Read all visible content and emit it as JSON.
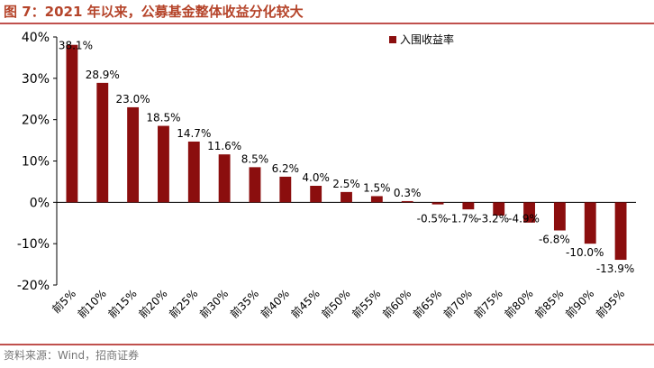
{
  "title": "图 7：2021 年以来，公募基金整体收益分化较大",
  "source": "资料来源：Wind，招商证券",
  "colors": {
    "bar": "#8b0e0e",
    "accent": "#c0504d",
    "title": "#b5442a"
  },
  "chart_data": {
    "type": "bar",
    "categories": [
      "前5%",
      "前10%",
      "前15%",
      "前20%",
      "前25%",
      "前30%",
      "前35%",
      "前40%",
      "前45%",
      "前50%",
      "前55%",
      "前60%",
      "前65%",
      "前70%",
      "前75%",
      "前80%",
      "前85%",
      "前90%",
      "前95%"
    ],
    "series": [
      {
        "name": "入围收益率",
        "values": [
          38.1,
          28.9,
          23.0,
          18.5,
          14.7,
          11.6,
          8.5,
          6.2,
          4.0,
          2.5,
          1.5,
          0.3,
          -0.5,
          -1.7,
          -3.2,
          -4.9,
          -6.8,
          -10.0,
          -13.9
        ]
      }
    ],
    "data_labels": [
      "38.1%",
      "28.9%",
      "23.0%",
      "18.5%",
      "14.7%",
      "11.6%",
      "8.5%",
      "6.2%",
      "4.0%",
      "2.5%",
      "1.5%",
      "0.3%",
      "-0.5%",
      "-1.7%",
      "-3.2%",
      "-4.9%",
      "-6.8%",
      "-10.0%",
      "-13.9%"
    ],
    "ylim": [
      -20,
      40
    ],
    "yticks": [
      40,
      30,
      20,
      10,
      0,
      -10,
      -20
    ],
    "ytick_labels": [
      "40%",
      "30%",
      "20%",
      "10%",
      "0%",
      "-10%",
      "-20%"
    ],
    "legend_position": "top-right",
    "grid": false
  }
}
